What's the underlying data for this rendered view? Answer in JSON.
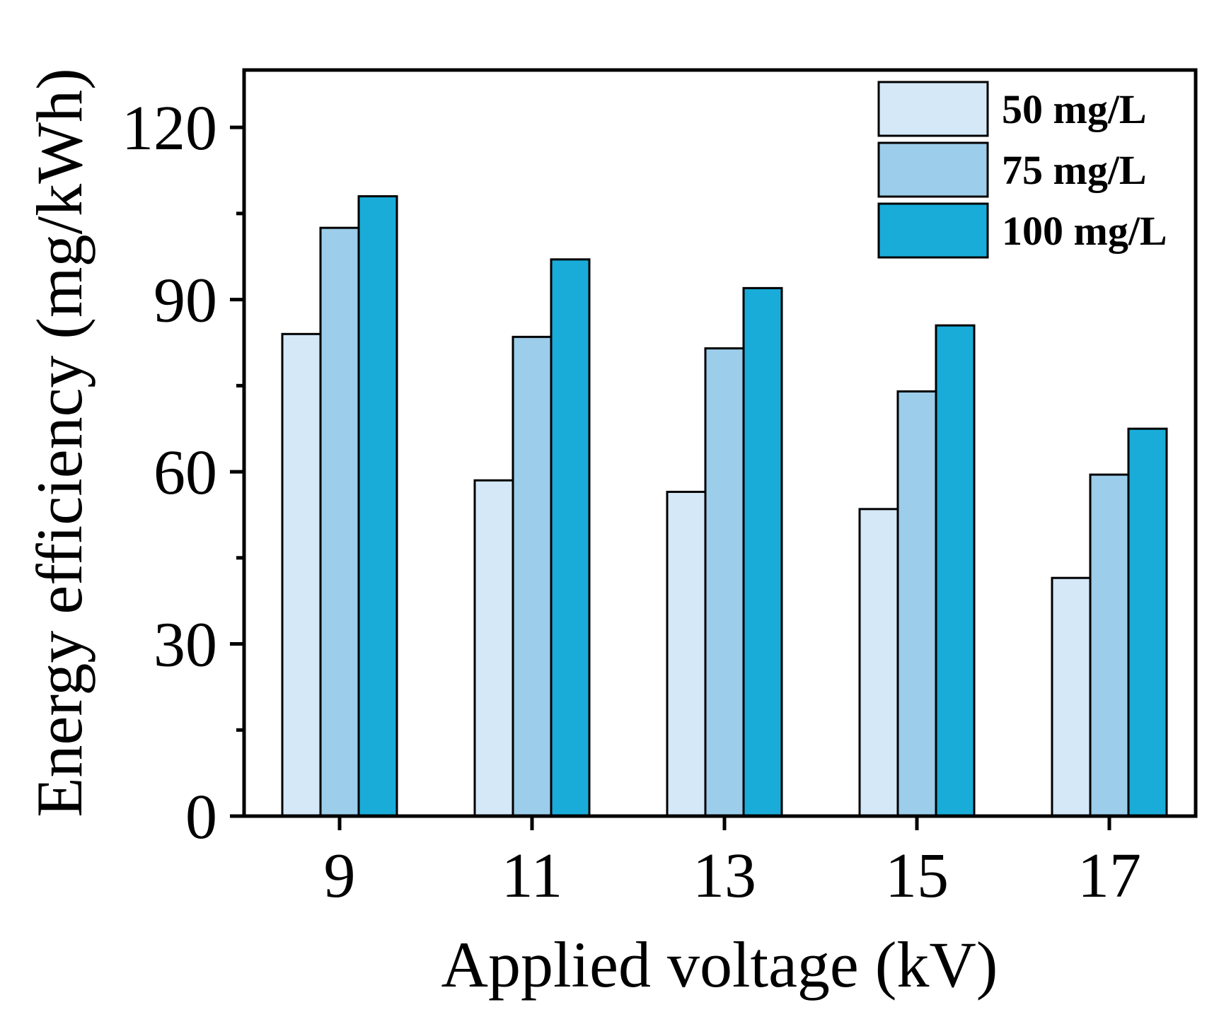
{
  "chart_data": {
    "type": "bar",
    "title": "",
    "xlabel": "Applied voltage (kV)",
    "ylabel": "Energy efficiency (mg/kWh)",
    "ylim": [
      0,
      130
    ],
    "yticks": [
      0,
      30,
      60,
      90,
      120
    ],
    "categories": [
      "9",
      "11",
      "13",
      "15",
      "17"
    ],
    "series": [
      {
        "name": "50 mg/L",
        "values": [
          84,
          58.5,
          56.5,
          53.5,
          41.5
        ],
        "color": "#d4e8f8"
      },
      {
        "name": "75 mg/L",
        "values": [
          102.5,
          83.5,
          81.5,
          74,
          59.5
        ],
        "color": "#9ccdea"
      },
      {
        "name": "100 mg/L",
        "values": [
          108,
          97,
          92,
          85.5,
          67.5
        ],
        "color": "#19acd9"
      }
    ],
    "legend_position": "top-right",
    "grid": false
  }
}
